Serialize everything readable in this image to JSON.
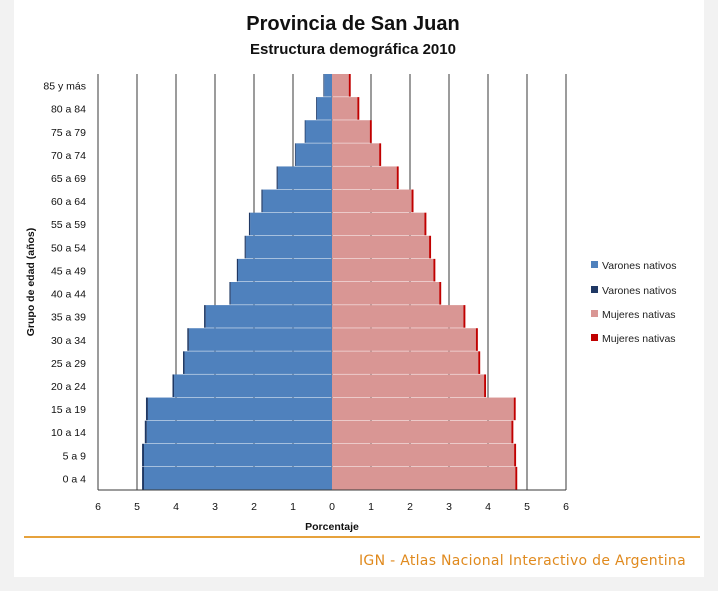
{
  "chart_data": {
    "type": "bar",
    "orientation": "horizontal",
    "subtype": "population-pyramid",
    "title": "Provincia de San Juan",
    "subtitle": "Estructura demográfica 2010",
    "xlabel": "Porcentaje",
    "ylabel": "Grupo de edad (años)",
    "xlim": [
      -6,
      6
    ],
    "xtick_labels": [
      "6",
      "5",
      "4",
      "3",
      "2",
      "1",
      "0",
      "1",
      "2",
      "3",
      "4",
      "5",
      "6"
    ],
    "grid": "vertical",
    "legend_position": "right",
    "categories": [
      "0 a 4",
      "5 a 9",
      "10 a 14",
      "15 a 19",
      "20 a 24",
      "25 a 29",
      "30 a 34",
      "35 a 39",
      "40 a 44",
      "45 a 49",
      "50 a 54",
      "55 a 59",
      "60 a 64",
      "65 a 69",
      "70 a 74",
      "75 a 79",
      "80 a 84",
      "85 y más"
    ],
    "series": [
      {
        "name": "Varones nativos",
        "color": "#4f81bd",
        "side": "left",
        "values": [
          4.82,
          4.82,
          4.75,
          4.72,
          4.05,
          3.78,
          3.67,
          3.24,
          2.6,
          2.41,
          2.21,
          2.1,
          1.78,
          1.39,
          0.93,
          0.68,
          0.39,
          0.2
        ]
      },
      {
        "name": "Varones nativos",
        "color": "#1f3864",
        "side": "left",
        "values": [
          0.05,
          0.05,
          0.05,
          0.05,
          0.04,
          0.04,
          0.04,
          0.04,
          0.03,
          0.03,
          0.03,
          0.03,
          0.03,
          0.03,
          0.02,
          0.02,
          0.02,
          0.02
        ]
      },
      {
        "name": "Mujeres nativas",
        "color": "#d99694",
        "side": "right",
        "values": [
          4.7,
          4.67,
          4.6,
          4.66,
          3.9,
          3.75,
          3.69,
          3.37,
          2.75,
          2.6,
          2.49,
          2.37,
          2.04,
          1.66,
          1.21,
          0.97,
          0.65,
          0.43
        ]
      },
      {
        "name": "Mujeres nativas",
        "color": "#c00000",
        "side": "right",
        "values": [
          0.05,
          0.05,
          0.05,
          0.05,
          0.05,
          0.05,
          0.05,
          0.05,
          0.05,
          0.05,
          0.05,
          0.05,
          0.05,
          0.05,
          0.05,
          0.05,
          0.05,
          0.05
        ]
      }
    ]
  },
  "footer": {
    "text": "IGN - Atlas Nacional Interactivo de Argentina",
    "color": "#e08a1e"
  }
}
